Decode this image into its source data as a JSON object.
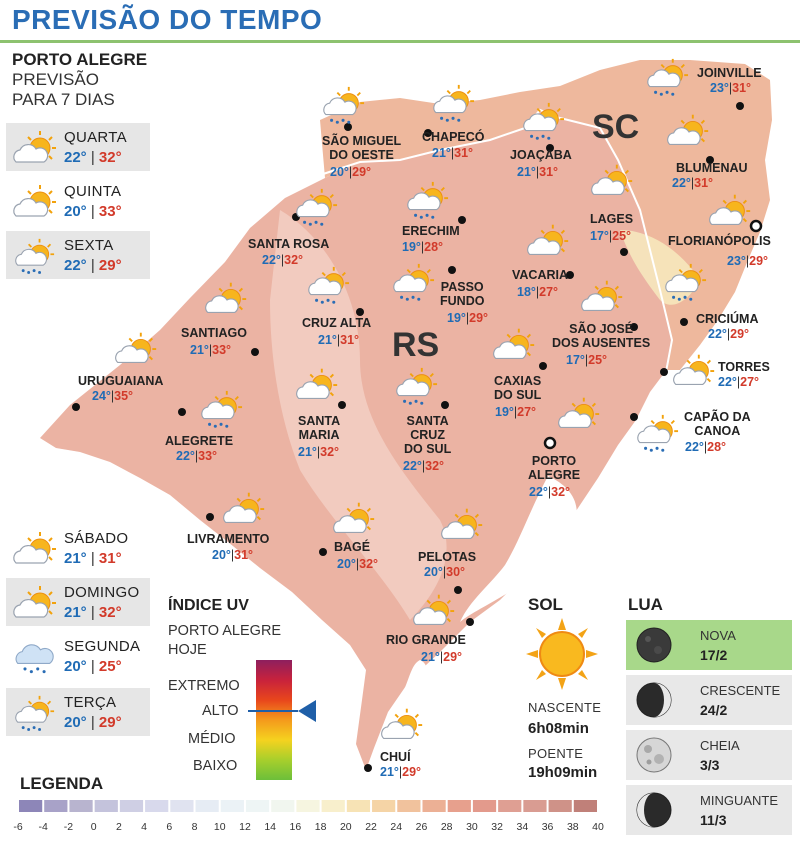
{
  "title": "PREVISÃO DO TEMPO",
  "side": {
    "city": "PORTO ALEGRE",
    "line1": "PREVISÃO",
    "line2": "PARA 7 DIAS"
  },
  "days": [
    {
      "name": "QUARTA",
      "min": "22°",
      "max": "32°",
      "icon": "sun-cloud-icon"
    },
    {
      "name": "QUINTA",
      "min": "20°",
      "max": "33°",
      "icon": "sun-cloud-icon"
    },
    {
      "name": "SEXTA",
      "min": "22°",
      "max": "29°",
      "icon": "sun-cloud-rain-icon"
    },
    {
      "name": "SÁBADO",
      "min": "21°",
      "max": "31°",
      "icon": "sun-cloud-icon"
    },
    {
      "name": "DOMINGO",
      "min": "21°",
      "max": "32°",
      "icon": "sun-cloud-icon"
    },
    {
      "name": "SEGUNDA",
      "min": "20°",
      "max": "25°",
      "icon": "cloud-rain-icon"
    },
    {
      "name": "TERÇA",
      "min": "20°",
      "max": "29°",
      "icon": "sun-cloud-rain-icon"
    }
  ],
  "states": {
    "rs": "RS",
    "sc": "SC"
  },
  "cities": [
    {
      "id": "sao-miguel-do-oeste",
      "name": "SÃO MIGUEL|DO OESTE",
      "min": "20°",
      "max": "29°",
      "icon": "sun-cloud-rain-icon"
    },
    {
      "id": "chapeco",
      "name": "CHAPECÓ",
      "min": "21°",
      "max": "31°",
      "icon": "sun-cloud-rain-icon"
    },
    {
      "id": "joacaba",
      "name": "JOAÇABA",
      "min": "21°",
      "max": "31°",
      "icon": "sun-cloud-rain-icon"
    },
    {
      "id": "joinville",
      "name": "JOINVILLE",
      "min": "23°",
      "max": "31°",
      "icon": "sun-cloud-rain-icon"
    },
    {
      "id": "blumenau",
      "name": "BLUMENAU",
      "min": "22°",
      "max": "31°",
      "icon": "sun-cloud-icon"
    },
    {
      "id": "lages",
      "name": "LAGES",
      "min": "17°",
      "max": "25°",
      "icon": "sun-cloud-icon"
    },
    {
      "id": "florianopolis",
      "name": "FLORIANÓPOLIS",
      "min": "23°",
      "max": "29°",
      "icon": "sun-cloud-icon"
    },
    {
      "id": "erechim",
      "name": "ERECHIM",
      "min": "19°",
      "max": "28°",
      "icon": "sun-cloud-rain-icon"
    },
    {
      "id": "santa-rosa",
      "name": "SANTA ROSA",
      "min": "22°",
      "max": "32°",
      "icon": "sun-cloud-rain-icon"
    },
    {
      "id": "passo-fundo",
      "name": "PASSO|FUNDO",
      "min": "19°",
      "max": "29°",
      "icon": "sun-cloud-rain-icon"
    },
    {
      "id": "vacaria",
      "name": "VACARIA",
      "min": "18°",
      "max": "27°",
      "icon": "sun-cloud-icon"
    },
    {
      "id": "criciuma",
      "name": "CRICIÚMA",
      "min": "22°",
      "max": "29°",
      "icon": "sun-cloud-rain-icon"
    },
    {
      "id": "santiago",
      "name": "SANTIAGO",
      "min": "21°",
      "max": "33°",
      "icon": "sun-cloud-icon"
    },
    {
      "id": "cruz-alta",
      "name": "CRUZ ALTA",
      "min": "21°",
      "max": "31°",
      "icon": "sun-cloud-rain-icon"
    },
    {
      "id": "sao-jose-dos-ausentes",
      "name": "SÃO JOSÉ|DOS AUSENTES",
      "min": "17°",
      "max": "25°",
      "icon": "sun-cloud-icon"
    },
    {
      "id": "torres",
      "name": "TORRES",
      "min": "22°",
      "max": "27°",
      "icon": "sun-cloud-icon"
    },
    {
      "id": "uruguaiana",
      "name": "URUGUAIANA",
      "min": "24°",
      "max": "35°",
      "icon": "sun-cloud-icon"
    },
    {
      "id": "caxias-do-sul",
      "name": "CAXIAS|DO SUL",
      "min": "19°",
      "max": "27°",
      "icon": "sun-cloud-icon"
    },
    {
      "id": "alegrete",
      "name": "ALEGRETE",
      "min": "22°",
      "max": "33°",
      "icon": "sun-cloud-rain-icon"
    },
    {
      "id": "santa-maria",
      "name": "SANTA|MARIA",
      "min": "21°",
      "max": "32°",
      "icon": "sun-cloud-icon"
    },
    {
      "id": "santa-cruz-do-sul",
      "name": "SANTA|CRUZ|DO SUL",
      "min": "22°",
      "max": "32°",
      "icon": "sun-cloud-rain-icon"
    },
    {
      "id": "capao-da-canoa",
      "name": "CAPÃO DA|CANOA",
      "min": "22°",
      "max": "28°",
      "icon": "sun-cloud-rain-icon"
    },
    {
      "id": "porto-alegre",
      "name": "PORTO|ALEGRE",
      "min": "22°",
      "max": "32°",
      "icon": "sun-cloud-icon"
    },
    {
      "id": "livramento",
      "name": "LIVRAMENTO",
      "min": "20°",
      "max": "31°",
      "icon": "sun-cloud-icon"
    },
    {
      "id": "bage",
      "name": "BAGÉ",
      "min": "20°",
      "max": "32°",
      "icon": "sun-cloud-icon"
    },
    {
      "id": "pelotas",
      "name": "PELOTAS",
      "min": "20°",
      "max": "30°",
      "icon": "sun-cloud-icon"
    },
    {
      "id": "rio-grande",
      "name": "RIO GRANDE",
      "min": "21°",
      "max": "29°",
      "icon": "sun-cloud-icon"
    },
    {
      "id": "chui",
      "name": "CHUÍ",
      "min": "21°",
      "max": "29°",
      "icon": "sun-cloud-icon"
    }
  ],
  "uv": {
    "title": "ÍNDICE UV",
    "sub1": "PORTO ALEGRE",
    "sub2": "HOJE",
    "levels": [
      "EXTREMO",
      "ALTO",
      "MÉDIO",
      "BAIXO"
    ],
    "current": "ALTO"
  },
  "sol": {
    "title": "SOL",
    "rise_label": "NASCENTE",
    "rise": "6h08min",
    "set_label": "POENTE",
    "set": "19h09min"
  },
  "lua": {
    "title": "LUA",
    "phases": [
      {
        "name": "NOVA",
        "date": "17/2",
        "icon": "new-moon-icon",
        "highlight": true
      },
      {
        "name": "CRESCENTE",
        "date": "24/2",
        "icon": "first-quarter-moon-icon",
        "highlight": false
      },
      {
        "name": "CHEIA",
        "date": "3/3",
        "icon": "full-moon-icon",
        "highlight": false
      },
      {
        "name": "MINGUANTE",
        "date": "11/3",
        "icon": "last-quarter-moon-icon",
        "highlight": false
      }
    ]
  },
  "legend": {
    "title": "LEGENDA",
    "ticks": [
      "-6",
      "-4",
      "-2",
      "0",
      "2",
      "4",
      "6",
      "8",
      "10",
      "12",
      "14",
      "16",
      "18",
      "20",
      "22",
      "24",
      "26",
      "28",
      "30",
      "32",
      "34",
      "36",
      "38",
      "40"
    ],
    "colors": [
      "#8d86b8",
      "#a8a2c8",
      "#b8b4cf",
      "#c4c3dc",
      "#cfcfe4",
      "#d8d9ec",
      "#e0e3f0",
      "#e6ecf4",
      "#ebf2f6",
      "#eef5f5",
      "#f1f6ef",
      "#f6f5e0",
      "#f8efcc",
      "#f7e3b5",
      "#f5d4a6",
      "#f1c29d",
      "#ecb095",
      "#e7a08d",
      "#e39a8c",
      "#df9f93",
      "#d99c92",
      "#cf9288",
      "#c08079"
    ]
  }
}
